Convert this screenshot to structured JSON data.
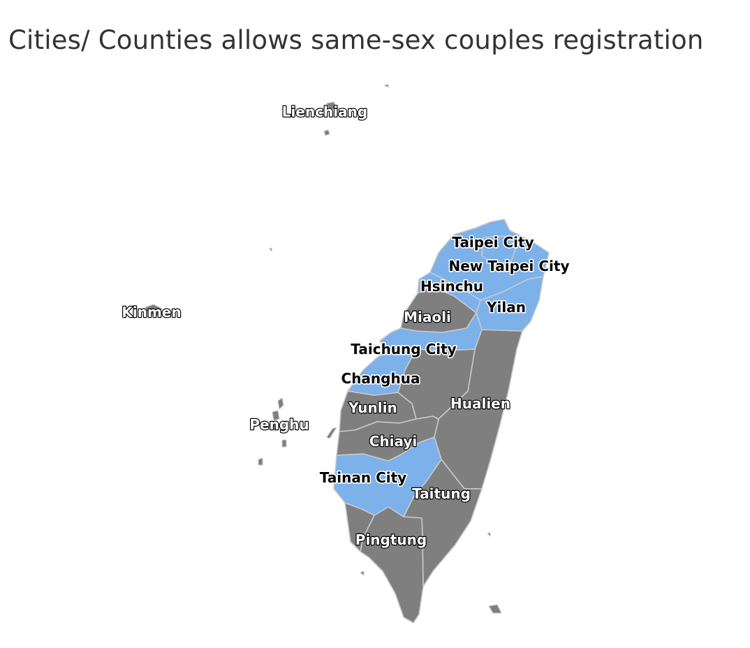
{
  "title": "Cities/ Counties allows same-sex couples registration",
  "colors": {
    "registration": "#7cb1ea",
    "no_registration": "#7f7f7f",
    "border": "#c9c9c9"
  },
  "regions": [
    {
      "id": "lienchiang",
      "name": "Lienchiang",
      "registration": false
    },
    {
      "id": "kinmen",
      "name": "Kinmen",
      "registration": false
    },
    {
      "id": "penghu",
      "name": "Penghu",
      "registration": false
    },
    {
      "id": "taipei-city",
      "name": "Taipei City",
      "registration": true
    },
    {
      "id": "new-taipei-city",
      "name": "New Taipei City",
      "registration": true
    },
    {
      "id": "hsinchu",
      "name": "Hsinchu",
      "registration": true
    },
    {
      "id": "yilan",
      "name": "Yilan",
      "registration": true
    },
    {
      "id": "miaoli",
      "name": "Miaoli",
      "registration": false
    },
    {
      "id": "taichung-city",
      "name": "Taichung City",
      "registration": true
    },
    {
      "id": "changhua",
      "name": "Changhua",
      "registration": true
    },
    {
      "id": "yunlin",
      "name": "Yunlin",
      "registration": false
    },
    {
      "id": "hualien",
      "name": "Hualien",
      "registration": false
    },
    {
      "id": "chiayi",
      "name": "Chiayi",
      "registration": false
    },
    {
      "id": "tainan-city",
      "name": "Tainan City",
      "registration": true
    },
    {
      "id": "taitung",
      "name": "Taitung",
      "registration": false
    },
    {
      "id": "pingtung",
      "name": "Pingtung",
      "registration": false
    }
  ]
}
